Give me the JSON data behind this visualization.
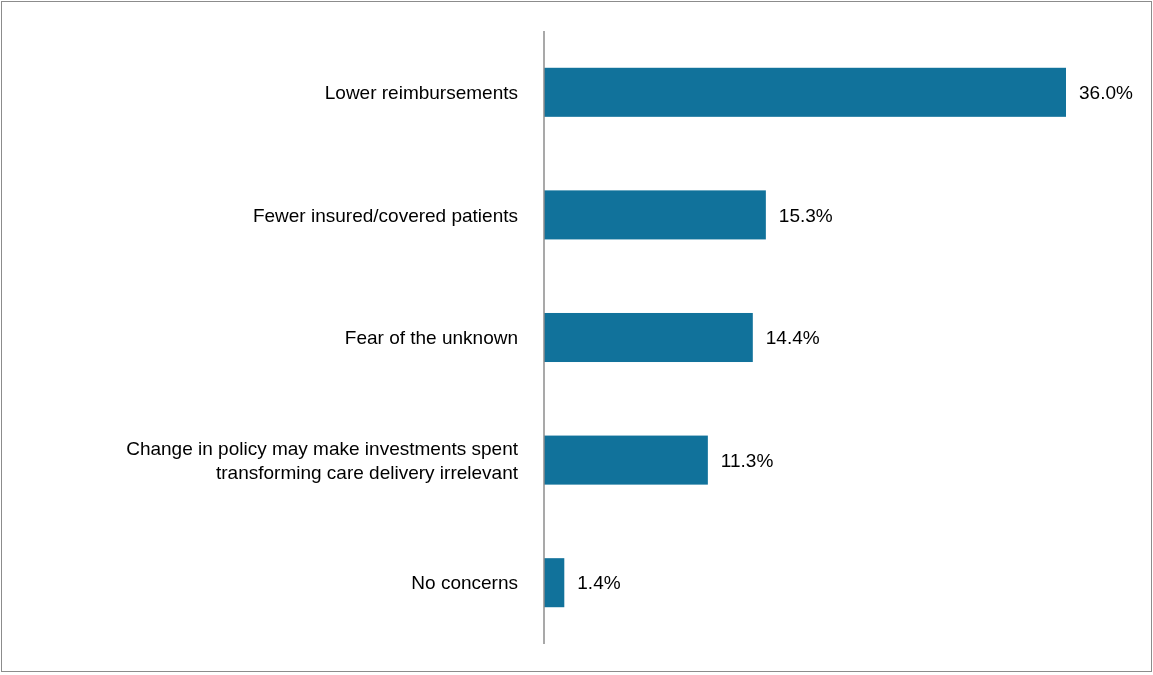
{
  "chart_data": {
    "type": "bar",
    "orientation": "horizontal",
    "categories": [
      "Lower reimbursements",
      "Fewer insured/covered patients",
      "Fear of the unknown",
      "Change in policy may make investments spent transforming care delivery irrelevant",
      "No concerns"
    ],
    "values": [
      36.0,
      15.3,
      14.4,
      11.3,
      1.4
    ],
    "value_labels": [
      "36.0%",
      "15.3%",
      "14.4%",
      "11.3%",
      "1.4%"
    ],
    "color": "#11729b"
  }
}
